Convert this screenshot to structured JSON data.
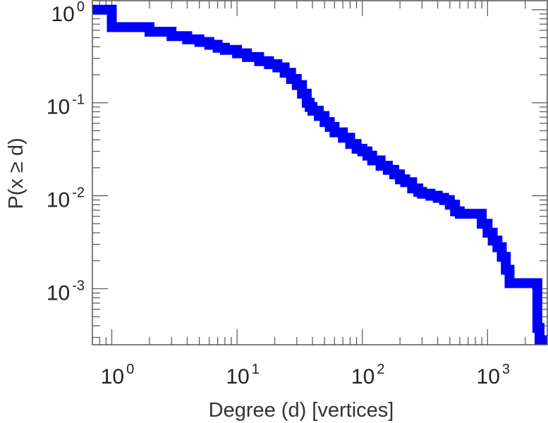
{
  "chart_data": {
    "type": "line",
    "title": "",
    "xlabel": "Degree (d) [vertices]",
    "ylabel": "P(x ≥ d)",
    "xscale": "log",
    "yscale": "log",
    "xlim": [
      0.7,
      3000
    ],
    "ylim": [
      0.00025,
      1.25
    ],
    "grid": false,
    "legend": "none",
    "line_color": "#0000ff",
    "step": true,
    "x_ticks": [
      {
        "base": "10",
        "exp": "0",
        "value": 1
      },
      {
        "base": "10",
        "exp": "1",
        "value": 10
      },
      {
        "base": "10",
        "exp": "2",
        "value": 100
      },
      {
        "base": "10",
        "exp": "3",
        "value": 1000
      }
    ],
    "y_ticks": [
      {
        "base": "10",
        "exp": "0",
        "value": 1
      },
      {
        "base": "10",
        "exp": "-1",
        "value": 0.1
      },
      {
        "base": "10",
        "exp": "-2",
        "value": 0.01
      },
      {
        "base": "10",
        "exp": "-3",
        "value": 0.001
      }
    ],
    "series": [
      {
        "x": [
          0.7,
          1,
          2,
          3,
          4,
          5,
          6,
          7,
          8,
          10,
          12,
          15,
          18,
          21,
          24,
          27,
          30,
          33,
          36,
          38,
          40,
          45,
          50,
          55,
          60,
          70,
          80,
          90,
          100,
          110,
          120,
          140,
          160,
          180,
          200,
          220,
          250,
          280,
          300,
          350,
          400,
          450,
          500,
          550,
          600,
          700,
          800,
          900,
          1000,
          1100,
          1200,
          1300,
          1400,
          1500,
          2500,
          2600,
          2750
        ],
        "y": [
          1.0,
          0.65,
          0.58,
          0.52,
          0.48,
          0.45,
          0.42,
          0.39,
          0.37,
          0.34,
          0.31,
          0.28,
          0.26,
          0.24,
          0.21,
          0.18,
          0.155,
          0.125,
          0.1,
          0.09,
          0.082,
          0.072,
          0.062,
          0.055,
          0.048,
          0.042,
          0.036,
          0.032,
          0.03,
          0.027,
          0.024,
          0.021,
          0.019,
          0.017,
          0.015,
          0.014,
          0.012,
          0.011,
          0.0105,
          0.01,
          0.0095,
          0.009,
          0.008,
          0.0068,
          0.0064,
          0.0064,
          0.0064,
          0.005,
          0.004,
          0.0033,
          0.0028,
          0.0022,
          0.0016,
          0.00115,
          0.00038,
          0.00028,
          0.00025
        ]
      }
    ]
  }
}
